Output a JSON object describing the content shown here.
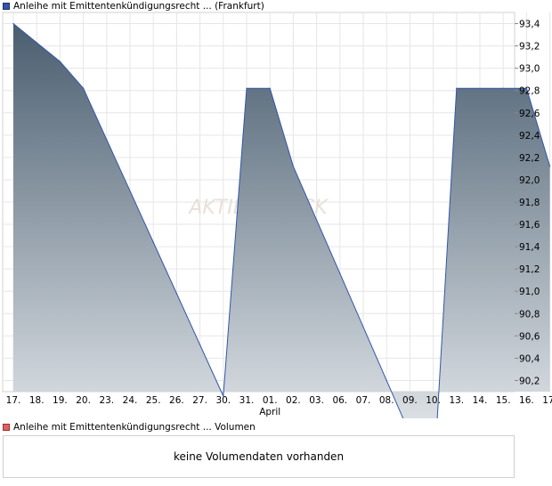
{
  "legend": {
    "price_label": "Anleihe mit Emittentenkündigungsrecht ... (Frankfurt)",
    "volume_label": "Anleihe mit Emittentenkündigungsrecht ... Volumen",
    "price_color": "#3355aa",
    "volume_color": "#e06060"
  },
  "volume": {
    "message": "keine Volumendaten vorhanden"
  },
  "watermark": "AKTIENCHECK",
  "chart_data": {
    "type": "area",
    "categories": [
      "17.",
      "18.",
      "19.",
      "20.",
      "23.",
      "24.",
      "25.",
      "26.",
      "27.",
      "30.",
      "31.",
      "01.",
      "02.",
      "03.",
      "06.",
      "07.",
      "08.",
      "09.",
      "10.",
      "13.",
      "14.",
      "15.",
      "16.",
      "17."
    ],
    "month_label": "April",
    "month_label_index": 11,
    "values": [
      93.4,
      93.23,
      93.06,
      92.82,
      92.36,
      91.9,
      91.44,
      90.98,
      90.52,
      90.06,
      92.82,
      92.82,
      92.12,
      91.64,
      91.16,
      90.68,
      90.2,
      89.72,
      89.24,
      92.82,
      92.82,
      92.82,
      92.82,
      92.12
    ],
    "ylim": [
      90.1,
      93.5
    ],
    "yticks": [
      90.2,
      90.4,
      90.6,
      90.8,
      91.0,
      91.2,
      91.4,
      91.6,
      91.8,
      92.0,
      92.2,
      92.4,
      92.6,
      92.8,
      93.0,
      93.2,
      93.4
    ],
    "ytick_labels": [
      "90,2",
      "90,4",
      "90,6",
      "90,8",
      "91,0",
      "91,2",
      "91,4",
      "91,6",
      "91,8",
      "92,0",
      "92,2",
      "92,4",
      "92,6",
      "92,8",
      "93,0",
      "93,2",
      "93,4"
    ],
    "line_color": "#3355aa",
    "fill_top_color": "#4a5e70",
    "fill_bottom_color": "#f4f6f8",
    "grid": true
  }
}
